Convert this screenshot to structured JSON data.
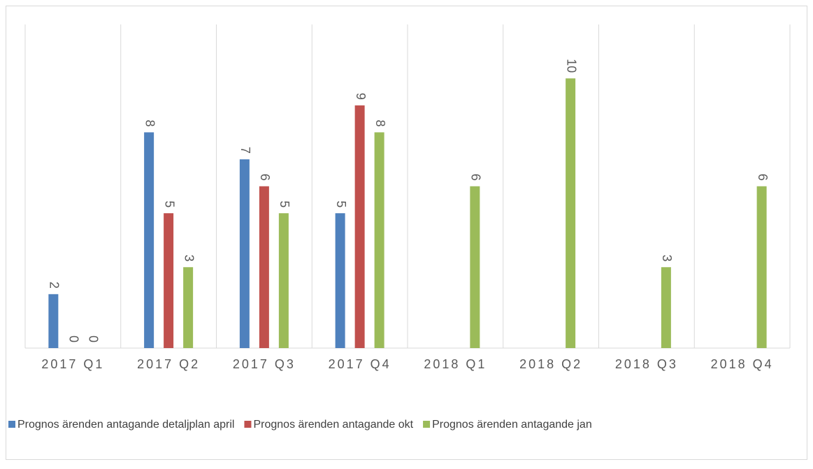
{
  "chart_data": {
    "type": "bar",
    "categories": [
      "2017 Q1",
      "2017 Q2",
      "2017 Q3",
      "2017 Q4",
      "2018 Q1",
      "2018 Q2",
      "2018 Q3",
      "2018 Q4"
    ],
    "series": [
      {
        "name": "Prognos ärenden antagande detaljplan april",
        "color": "#4f81bd",
        "values": [
          2,
          8,
          7,
          5,
          null,
          null,
          null,
          null
        ]
      },
      {
        "name": "Prognos ärenden antagande okt",
        "color": "#c0504d",
        "values": [
          0,
          5,
          6,
          9,
          null,
          null,
          null,
          null
        ]
      },
      {
        "name": "Prognos ärenden antagande jan",
        "color": "#9bbb59",
        "values": [
          0,
          3,
          5,
          8,
          6,
          10,
          3,
          6
        ]
      }
    ],
    "ylim": [
      0,
      12
    ],
    "legend": "bottom"
  }
}
